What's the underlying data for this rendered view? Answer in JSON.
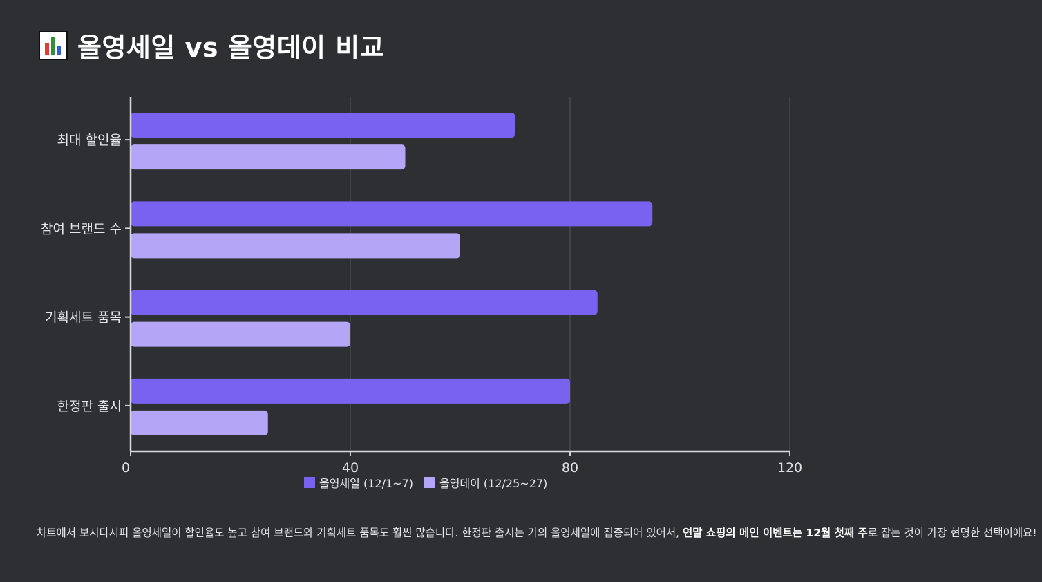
{
  "header": {
    "title": "올영세일 vs 올영데이 비교",
    "icon": "bar-chart-icon"
  },
  "chart_data": {
    "type": "bar",
    "orientation": "horizontal",
    "categories": [
      "최대 할인율",
      "참여 브랜드 수",
      "기획세트 품목",
      "한정판 출시"
    ],
    "series": [
      {
        "name": "올영세일 (12/1~7)",
        "values": [
          70,
          95,
          85,
          80
        ],
        "color": "#7a62f0"
      },
      {
        "name": "올영데이 (12/25~27)",
        "values": [
          50,
          60,
          40,
          25
        ],
        "color": "#b4a5f7"
      }
    ],
    "xlim": [
      0,
      120
    ],
    "xticks": [
      0,
      40,
      80,
      120
    ],
    "grid": true,
    "legend_position": "bottom"
  },
  "description": {
    "part1": "차트에서 보시다시피 올영세일이 할인율도 높고 참여 브랜드와 기획세트 품목도 훨씬 많습니다. 한정판 출시는 거의 올영세일에 집중되어 있어서, ",
    "bold": "연말 쇼핑의 메인 이벤트는 12월 첫째 주",
    "part2": "로 잡는 것이 가장 현명한 선택이에요!"
  }
}
